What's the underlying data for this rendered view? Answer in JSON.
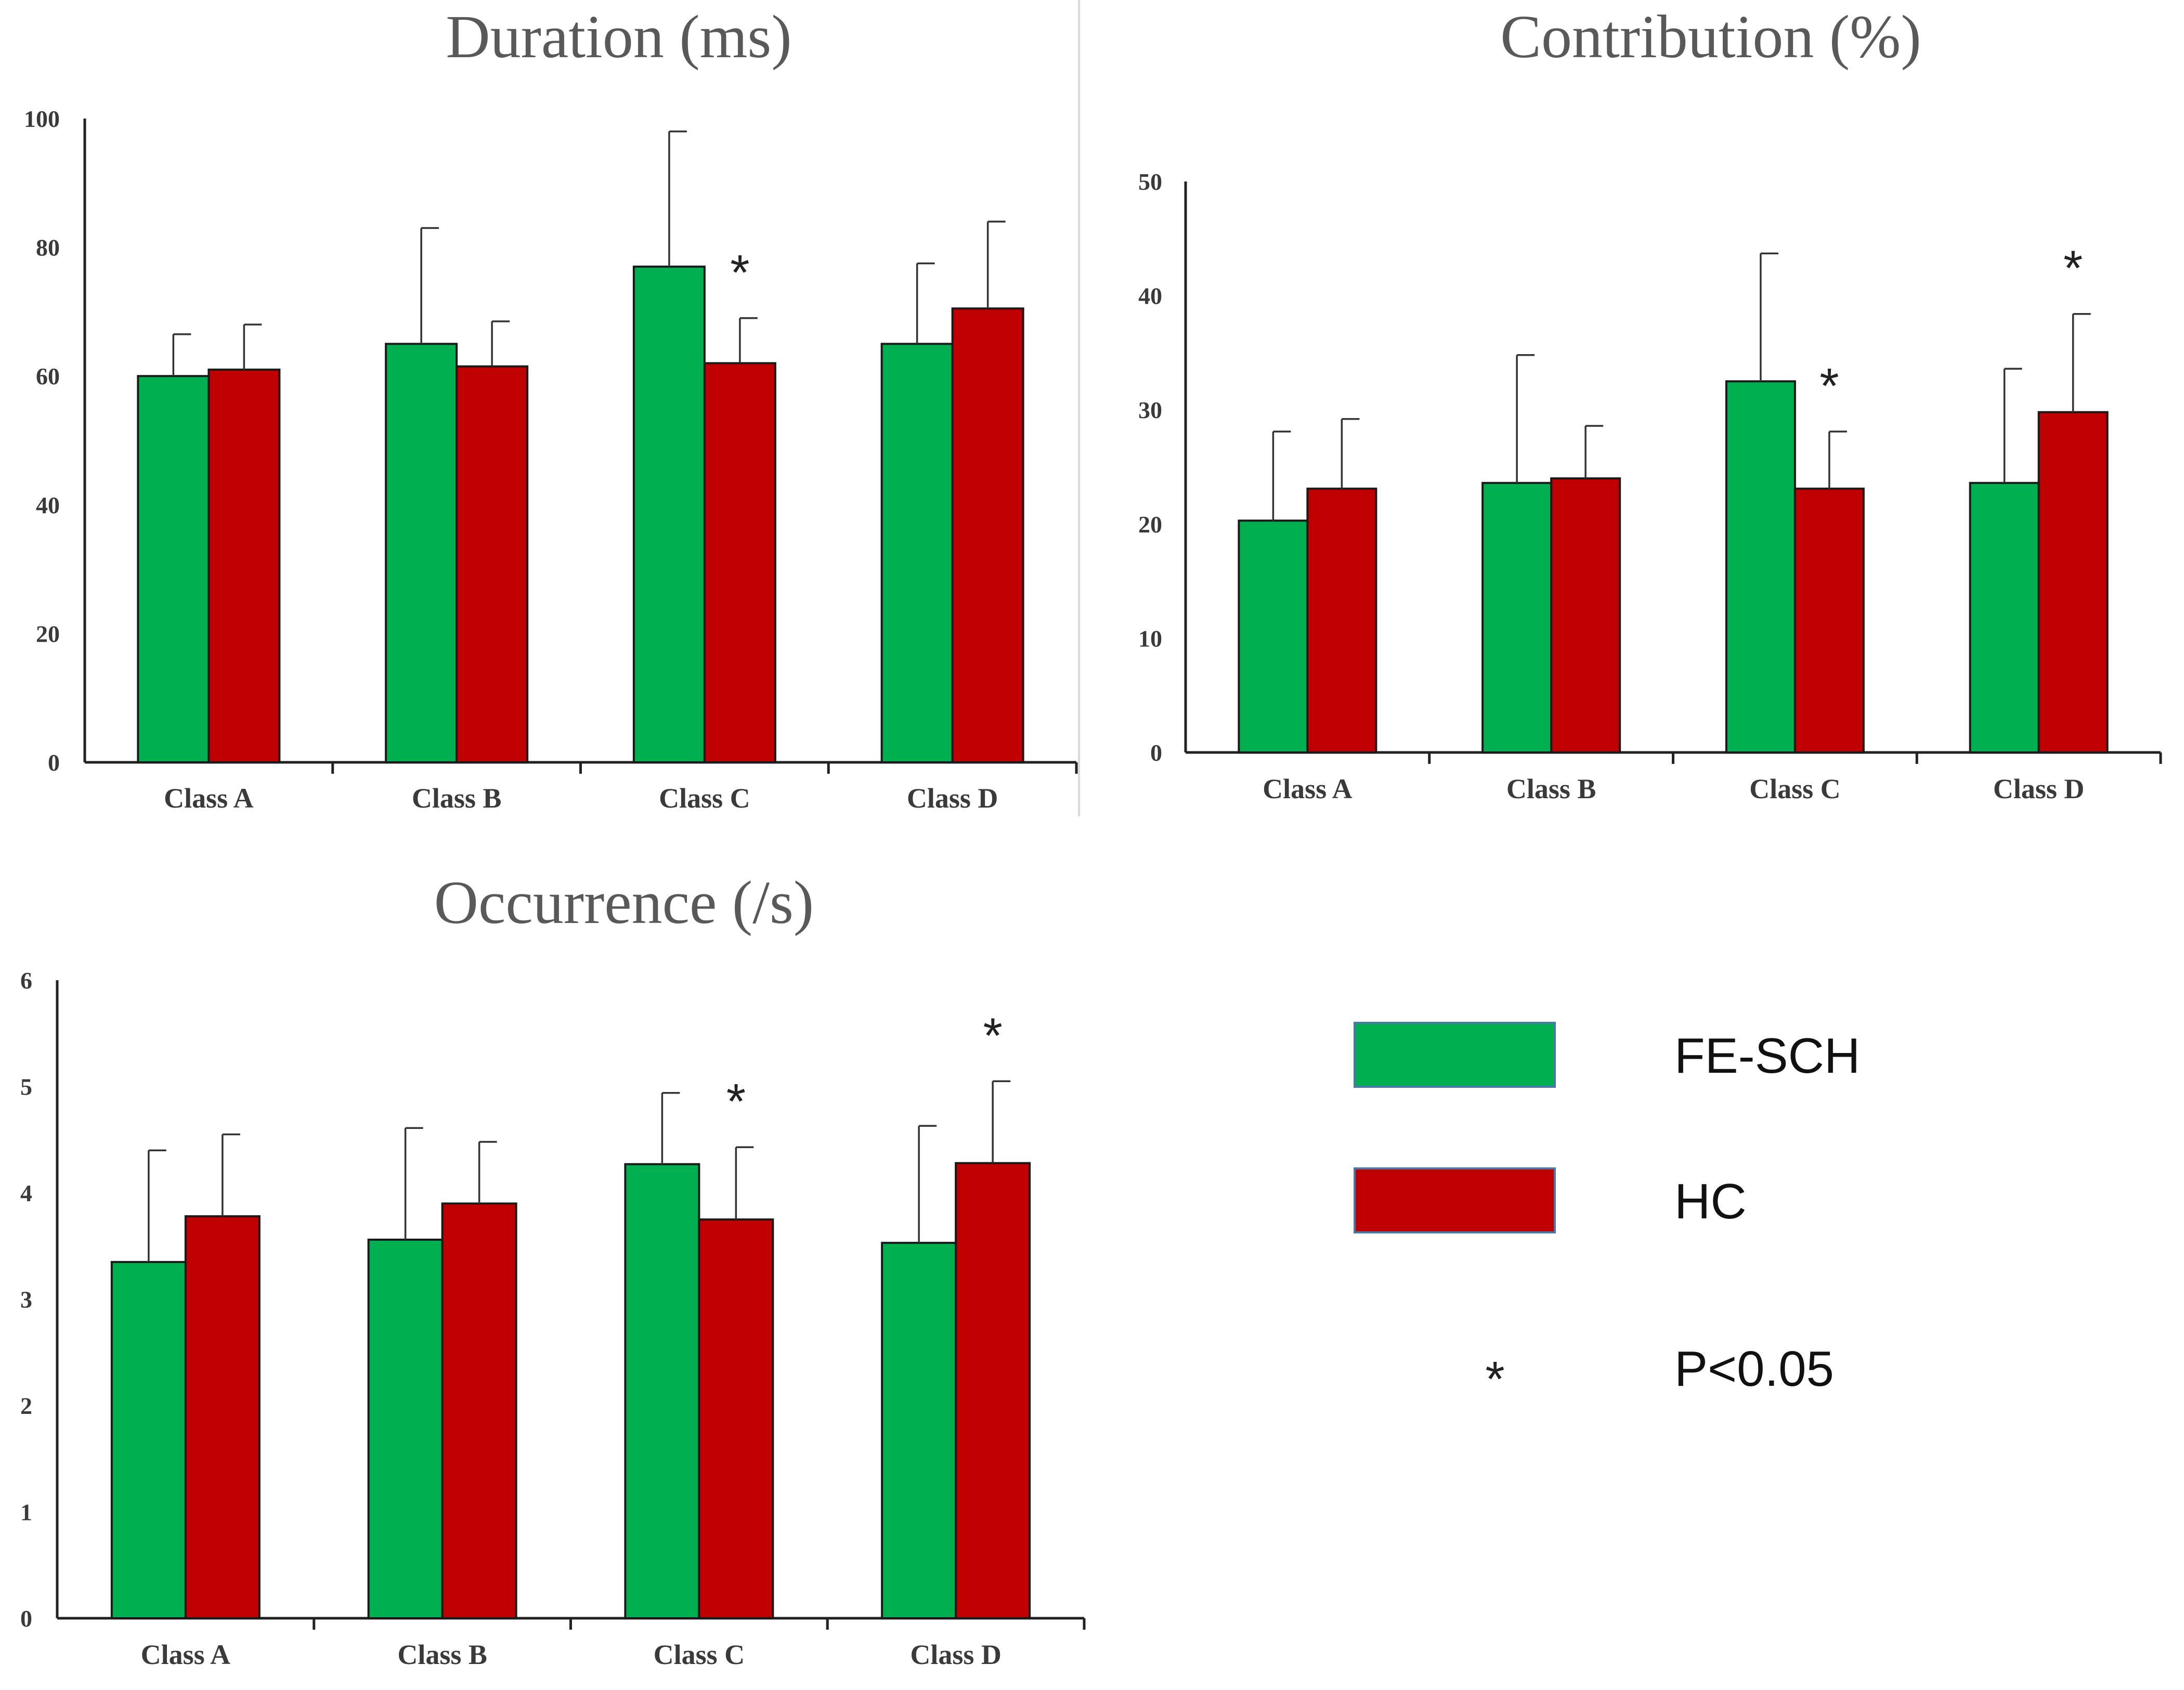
{
  "chart_data": [
    {
      "id": "duration",
      "type": "bar",
      "title": "Duration (ms)",
      "categories": [
        "Class A",
        "Class B",
        "Class C",
        "Class D"
      ],
      "yticks": [
        "0",
        "20",
        "40",
        "60",
        "80",
        "100"
      ],
      "ylim": [
        0,
        100
      ],
      "series": [
        {
          "name": "FE-SCH",
          "values": [
            60,
            65,
            77,
            65
          ],
          "errors": [
            6.5,
            18,
            21,
            12.5
          ]
        },
        {
          "name": "HC",
          "values": [
            61,
            61.5,
            62,
            70.5
          ],
          "errors": [
            7,
            7,
            7,
            13.5
          ]
        }
      ],
      "significance": [
        {
          "category": "Class C",
          "series": "HC",
          "label": "*"
        }
      ]
    },
    {
      "id": "contribution",
      "type": "bar",
      "title": "Contribution (%)",
      "categories": [
        "Class A",
        "Class B",
        "Class C",
        "Class D"
      ],
      "yticks": [
        "0",
        "10",
        "20",
        "30",
        "40",
        "50"
      ],
      "ylim": [
        0,
        50
      ],
      "series": [
        {
          "name": "FE-SCH",
          "values": [
            20.3,
            23.6,
            32.5,
            23.6
          ],
          "errors": [
            7.8,
            11.2,
            11.2,
            10
          ]
        },
        {
          "name": "HC",
          "values": [
            23.1,
            24,
            23.1,
            29.8
          ],
          "errors": [
            6.1,
            4.6,
            5,
            8.6
          ]
        }
      ],
      "significance": [
        {
          "category": "Class C",
          "series": "HC",
          "label": "*"
        },
        {
          "category": "Class D",
          "series": "HC",
          "label": "*"
        }
      ]
    },
    {
      "id": "occurrence",
      "type": "bar",
      "title": "Occurrence (/s)",
      "categories": [
        "Class A",
        "Class B",
        "Class C",
        "Class D"
      ],
      "yticks": [
        "0",
        "1",
        "2",
        "3",
        "4",
        "5",
        "6"
      ],
      "ylim": [
        0,
        6
      ],
      "series": [
        {
          "name": "FE-SCH",
          "values": [
            3.35,
            3.56,
            4.27,
            3.53
          ],
          "errors": [
            1.05,
            1.05,
            0.67,
            1.1
          ]
        },
        {
          "name": "HC",
          "values": [
            3.78,
            3.9,
            3.75,
            4.28
          ],
          "errors": [
            0.77,
            0.58,
            0.68,
            0.77
          ]
        }
      ],
      "significance": [
        {
          "category": "Class C",
          "series": "HC",
          "label": "*"
        },
        {
          "category": "Class D",
          "series": "HC",
          "label": "*"
        }
      ]
    }
  ],
  "legend": {
    "items": [
      {
        "label": "FE-SCH",
        "color": "#00b050",
        "edge": "#4a78a8"
      },
      {
        "label": "HC",
        "color": "#c00000",
        "edge": "#4a78a8"
      }
    ],
    "significance_symbol": "*",
    "significance_label": "P<0.05"
  },
  "colors": {
    "fe_sch": "#00b050",
    "hc": "#c00000",
    "bar_edge": "#1a1a1a"
  }
}
